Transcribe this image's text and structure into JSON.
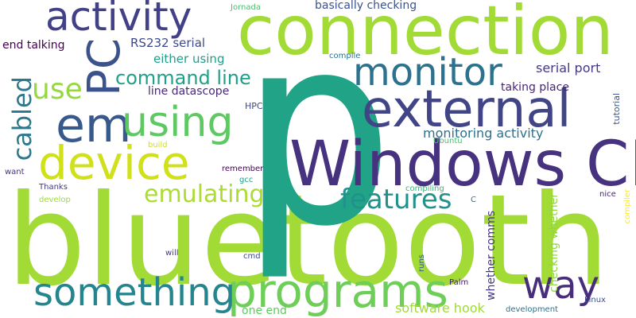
{
  "cloud": {
    "background": "#ffffff",
    "words": {
      "bluetooth": {
        "text": "bluetooth",
        "color": "#a2da36"
      },
      "p": {
        "text": "p",
        "color": "#20a386"
      },
      "connection": {
        "text": "connection",
        "color": "#a2da36"
      },
      "windows_ce": {
        "text": "Windows CE",
        "color": "#46327e"
      },
      "external": {
        "text": "external",
        "color": "#414487"
      },
      "activity": {
        "text": "activity",
        "color": "#424086"
      },
      "device": {
        "text": "device",
        "color": "#d0e11c"
      },
      "em": {
        "text": "em",
        "color": "#38598c"
      },
      "using": {
        "text": "using",
        "color": "#5ec962"
      },
      "monitor": {
        "text": "monitor",
        "color": "#2c728e"
      },
      "programs": {
        "text": "programs",
        "color": "#6ece58"
      },
      "something": {
        "text": "something",
        "color": "#25858e"
      },
      "pc": {
        "text": "PC",
        "color": "#3b528b"
      },
      "way": {
        "text": "way",
        "color": "#472d7b"
      },
      "features": {
        "text": "features",
        "color": "#21918c"
      },
      "emulating": {
        "text": "emulating",
        "color": "#addc30"
      },
      "cabled": {
        "text": "cabled",
        "color": "#2a788e"
      },
      "use": {
        "text": "use",
        "color": "#95d840"
      },
      "command_line": {
        "text": "command line",
        "color": "#1fa088"
      },
      "serial_port": {
        "text": "serial port",
        "color": "#443983"
      },
      "monitoring_activity": {
        "text": "monitoring activity",
        "color": "#2d708e"
      },
      "software_hook": {
        "text": "software hook",
        "color": "#a0da39"
      },
      "either_using": {
        "text": "either using",
        "color": "#1f9e89"
      },
      "rs232_serial": {
        "text": "RS232 serial",
        "color": "#3e4989"
      },
      "end_talking": {
        "text": "end talking",
        "color": "#440154"
      },
      "basically_checking": {
        "text": "basically checking",
        "color": "#3b528b"
      },
      "line_datascope": {
        "text": "line datascope",
        "color": "#482878"
      },
      "taking_place": {
        "text": "taking place",
        "color": "#482475"
      },
      "checking_whether": {
        "text": "checking whether",
        "color": "#8fd744"
      },
      "whether_comms": {
        "text": "whether comms",
        "color": "#453781"
      },
      "one_end": {
        "text": "one end",
        "color": "#5ec962"
      },
      "hpc": {
        "text": "HPC",
        "color": "#3e4989"
      },
      "tutorial": {
        "text": "tutorial",
        "color": "#3a548c"
      },
      "compile": {
        "text": "compile",
        "color": "#2c728e"
      },
      "jornada": {
        "text": "Jornada",
        "color": "#4ac16d"
      },
      "ubuntu": {
        "text": "Ubuntu",
        "color": "#4ac16d"
      },
      "build": {
        "text": "build",
        "color": "#d2e21b"
      },
      "want": {
        "text": "want",
        "color": "#46327e"
      },
      "thanks": {
        "text": "Thanks",
        "color": "#443983"
      },
      "develop": {
        "text": "develop",
        "color": "#a0da39"
      },
      "remember": {
        "text": "remember",
        "color": "#440154"
      },
      "gcc": {
        "text": "gcc",
        "color": "#1fa088"
      },
      "compiling": {
        "text": "compiling",
        "color": "#35b779"
      },
      "c": {
        "text": "C",
        "color": "#2a788e"
      },
      "nice": {
        "text": "nice",
        "color": "#482475"
      },
      "compiler": {
        "text": "compiler",
        "color": "#fde725"
      },
      "will": {
        "text": "will",
        "color": "#443983"
      },
      "cmd": {
        "text": "cmd",
        "color": "#3e4989"
      },
      "runs": {
        "text": "runs",
        "color": "#365c8d"
      },
      "palm": {
        "text": "Palm",
        "color": "#48186a"
      },
      "development": {
        "text": "development",
        "color": "#2c728e"
      },
      "linux": {
        "text": "Linux",
        "color": "#3b528b"
      }
    }
  }
}
